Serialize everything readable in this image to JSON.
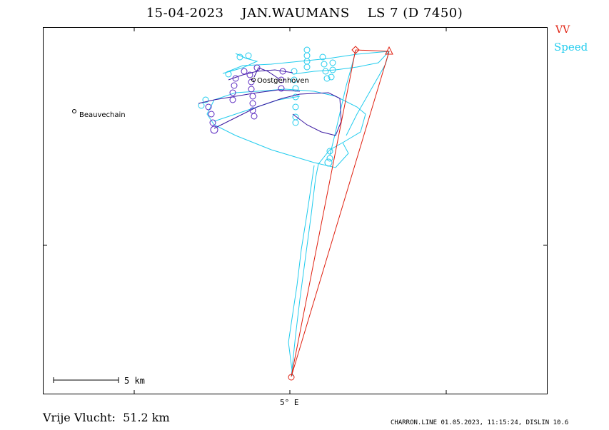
{
  "header": {
    "date": "15-04-2023",
    "pilot": "JAN.WAUMANS",
    "glider": "LS 7 (D 7450)"
  },
  "legend": {
    "vv_label": "VV",
    "vv_color": "#e02010",
    "speed_label": "Speed",
    "speed_color": "#22ccee"
  },
  "map": {
    "places": [
      {
        "name": "Beauvechain"
      },
      {
        "name": "Oostgenhoven"
      }
    ],
    "x_axis_label": "5° E",
    "scale_bar_label": "5 km",
    "turnpoint_markers": [
      "start-circle",
      "diamond",
      "triangle"
    ]
  },
  "summary": {
    "label": "Vrije Vlucht:",
    "distance": "51.2 km"
  },
  "footer": {
    "text": "CHARRON.LINE 01.05.2023, 11:15:24, DISLIN 10.6"
  },
  "colors": {
    "track_climb": "#22ccee",
    "track_cruise": "#3a18a0",
    "task_line": "#e02010"
  }
}
